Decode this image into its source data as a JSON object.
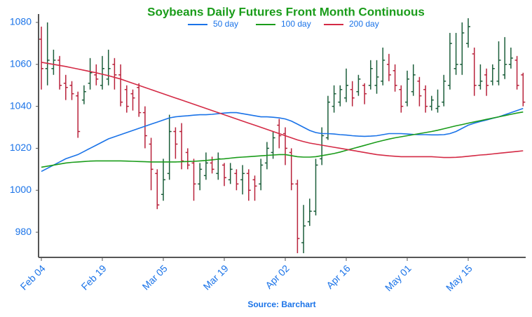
{
  "chart_data": {
    "type": "ohlc",
    "title": "Soybeans Daily Futures Front Month Continuous",
    "source": "Source: Barchart",
    "categories": [
      "Feb 04",
      null,
      null,
      null,
      null,
      null,
      null,
      null,
      null,
      null,
      "Feb 19",
      null,
      null,
      null,
      null,
      null,
      null,
      null,
      null,
      null,
      "Mar 05",
      null,
      null,
      null,
      null,
      null,
      null,
      null,
      null,
      null,
      "Mar 19",
      null,
      null,
      null,
      null,
      null,
      null,
      null,
      null,
      null,
      "Apr 02",
      null,
      null,
      null,
      null,
      null,
      null,
      null,
      null,
      null,
      "Apr 16",
      null,
      null,
      null,
      null,
      null,
      null,
      null,
      null,
      null,
      "May 01",
      null,
      null,
      null,
      null,
      null,
      null,
      null,
      null,
      null,
      "May 15",
      null,
      null,
      null,
      null,
      null,
      null,
      null,
      null,
      null
    ],
    "open": [
      1072,
      1058,
      1058,
      1062,
      1051,
      1050,
      1045,
      1043,
      1051,
      1055,
      1050,
      1053,
      1060,
      1055,
      1048,
      1046,
      1049,
      1037,
      1022,
      1008,
      998,
      1008,
      1028,
      1028,
      1018,
      1013,
      1003,
      1007,
      1013,
      1008,
      1012,
      1005,
      1008,
      1005,
      1008,
      1005,
      1003,
      1013,
      1018,
      1031,
      1027,
      1018,
      1003,
      975,
      985,
      990,
      1015,
      1025,
      1040,
      1042,
      1044,
      1048,
      1047,
      1050,
      1050,
      1050,
      1052,
      1060,
      1057,
      1048,
      1042,
      1047,
      1052,
      1048,
      1040,
      1039,
      1042,
      1050,
      1058,
      1060,
      1070,
      1065,
      1050,
      1055,
      1052,
      1052,
      1055,
      1060,
      1062,
      1055
    ],
    "high": [
      1078,
      1080,
      1067,
      1064,
      1055,
      1052,
      1047,
      1050,
      1063,
      1060,
      1064,
      1067,
      1063,
      1060,
      1050,
      1048,
      1051,
      1040,
      1025,
      1010,
      1015,
      1036,
      1030,
      1032,
      1020,
      1015,
      1013,
      1018,
      1016,
      1018,
      1013,
      1013,
      1010,
      1012,
      1010,
      1007,
      1015,
      1023,
      1028,
      1034,
      1030,
      1020,
      1005,
      993,
      996,
      1015,
      1030,
      1045,
      1050,
      1050,
      1058,
      1052,
      1055,
      1051,
      1062,
      1062,
      1068,
      1065,
      1060,
      1050,
      1057,
      1060,
      1054,
      1050,
      1045,
      1048,
      1055,
      1075,
      1075,
      1080,
      1082,
      1068,
      1060,
      1058,
      1060,
      1071,
      1073,
      1068,
      1064,
      1056
    ],
    "low": [
      1048,
      1050,
      1055,
      1048,
      1043,
      1043,
      1025,
      1041,
      1048,
      1050,
      1048,
      1050,
      1048,
      1040,
      1037,
      1038,
      1035,
      1020,
      1000,
      991,
      995,
      1005,
      1015,
      1010,
      1010,
      995,
      1000,
      1005,
      1008,
      1005,
      1002,
      1003,
      1000,
      998,
      995,
      995,
      1000,
      1010,
      1015,
      1020,
      1012,
      1000,
      970,
      970,
      983,
      988,
      1012,
      1024,
      1037,
      1040,
      1042,
      1040,
      1045,
      1041,
      1048,
      1046,
      1050,
      1052,
      1047,
      1037,
      1040,
      1045,
      1040,
      1037,
      1038,
      1037,
      1040,
      1048,
      1055,
      1055,
      1068,
      1045,
      1048,
      1045,
      1050,
      1050,
      1053,
      1058,
      1048,
      1040
    ],
    "close": [
      1058,
      1062,
      1062,
      1050,
      1049,
      1046,
      1028,
      1047,
      1056,
      1053,
      1058,
      1058,
      1055,
      1042,
      1040,
      1044,
      1037,
      1026,
      1010,
      993,
      1005,
      1028,
      1022,
      1014,
      1012,
      1003,
      1010,
      1013,
      1010,
      1015,
      1006,
      1010,
      1003,
      1008,
      1000,
      1002,
      1012,
      1020,
      1025,
      1026,
      1020,
      1003,
      977,
      983,
      990,
      1012,
      1026,
      1042,
      1046,
      1048,
      1050,
      1044,
      1053,
      1046,
      1058,
      1054,
      1062,
      1055,
      1050,
      1040,
      1053,
      1055,
      1045,
      1040,
      1043,
      1040,
      1052,
      1070,
      1060,
      1075,
      1078,
      1050,
      1052,
      1050,
      1058,
      1062,
      1060,
      1063,
      1050,
      1042
    ],
    "up_color": "#1b5e3a",
    "down_color": "#b8213a",
    "series": [
      {
        "name": "50 day",
        "color": "#1a73e8",
        "values": [
          1009,
          1010.5,
          1012,
          1013.5,
          1015,
          1016,
          1017,
          1018.5,
          1020,
          1021.5,
          1023,
          1024.5,
          1025.5,
          1026.5,
          1027.5,
          1028.5,
          1029.5,
          1030.5,
          1031.5,
          1032.5,
          1033.5,
          1034.5,
          1035,
          1035.3,
          1035.5,
          1035.8,
          1036,
          1036,
          1036.2,
          1036.5,
          1036.8,
          1037,
          1037,
          1036.5,
          1036,
          1035.5,
          1035,
          1035,
          1034.8,
          1034.5,
          1034,
          1033,
          1031.5,
          1030,
          1028.5,
          1027.5,
          1027,
          1027,
          1026.8,
          1026.5,
          1026.3,
          1026,
          1025.8,
          1025.7,
          1025.8,
          1026,
          1026.5,
          1027,
          1027,
          1027,
          1026.8,
          1026.6,
          1026.5,
          1026.5,
          1026.4,
          1026.4,
          1026.5,
          1027,
          1028,
          1029.5,
          1031,
          1032,
          1032.8,
          1033.5,
          1034.3,
          1035,
          1036,
          1037,
          1038,
          1039
        ]
      },
      {
        "name": "100 day",
        "color": "#1a9c1a",
        "values": [
          1011,
          1011.5,
          1012,
          1012.5,
          1013,
          1013.3,
          1013.5,
          1013.7,
          1013.9,
          1014,
          1014,
          1014,
          1014,
          1014,
          1013.9,
          1013.8,
          1013.7,
          1013.6,
          1013.5,
          1013.5,
          1013.5,
          1013.5,
          1013.5,
          1013.6,
          1013.7,
          1013.8,
          1014,
          1014.2,
          1014.5,
          1014.8,
          1015,
          1015.3,
          1015.6,
          1015.8,
          1016,
          1016.2,
          1016.4,
          1016.6,
          1016.8,
          1017,
          1017,
          1016.5,
          1016,
          1015.8,
          1015.8,
          1016,
          1016.5,
          1017,
          1017.5,
          1018.2,
          1019,
          1019.8,
          1020.6,
          1021.4,
          1022.2,
          1023,
          1023.7,
          1024.4,
          1025,
          1025.5,
          1026,
          1026.5,
          1027,
          1027.5,
          1028,
          1028.6,
          1029.3,
          1030,
          1030.7,
          1031.3,
          1032,
          1032.6,
          1033.2,
          1033.8,
          1034.4,
          1035,
          1035.6,
          1036.2,
          1036.8,
          1037.3
        ]
      },
      {
        "name": "200 day",
        "color": "#d42a45",
        "values": [
          1061,
          1060.5,
          1060,
          1059.5,
          1059,
          1058.4,
          1057.8,
          1057.2,
          1056.6,
          1056,
          1055.3,
          1054.6,
          1053.8,
          1053,
          1052,
          1051,
          1050,
          1049,
          1048,
          1047,
          1046,
          1045,
          1044,
          1043,
          1042,
          1041,
          1040,
          1039,
          1038,
          1037,
          1036,
          1035,
          1034,
          1033,
          1032,
          1031,
          1030,
          1029,
          1028,
          1027,
          1026,
          1025,
          1024,
          1023.2,
          1022.5,
          1022,
          1021.5,
          1021,
          1020.5,
          1020,
          1019.5,
          1019,
          1018.5,
          1018,
          1017.5,
          1017,
          1016.7,
          1016.4,
          1016.2,
          1016,
          1016,
          1016,
          1016,
          1016,
          1016,
          1015.8,
          1015.6,
          1015.6,
          1015.7,
          1015.9,
          1016.2,
          1016.5,
          1016.8,
          1017,
          1017.3,
          1017.6,
          1017.9,
          1018.2,
          1018.5,
          1018.8
        ]
      }
    ],
    "ylim": [
      968,
      1084
    ],
    "yticks": [
      980,
      1000,
      1020,
      1040,
      1060,
      1080
    ]
  }
}
